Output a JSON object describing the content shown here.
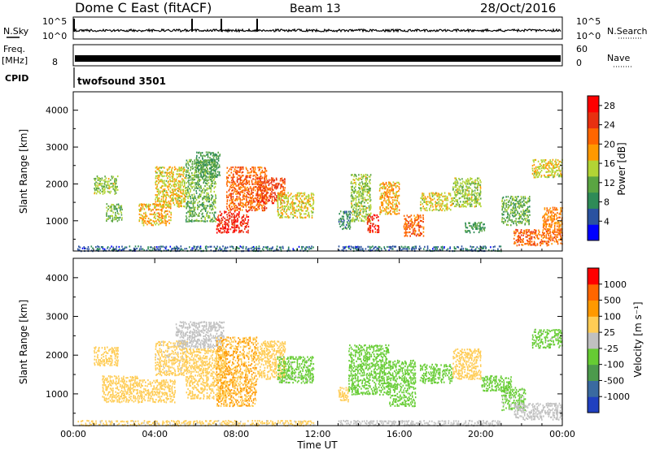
{
  "header": {
    "title": "Dome C East (fitACF)",
    "beam": "Beam 13",
    "date": "28/Oct/2016"
  },
  "status_panels": {
    "nsky_label": "N.Sky",
    "nsky_ticks": [
      "10^5",
      "10^0"
    ],
    "nsearch_label": "N.Search",
    "nsearch_ticks": [
      "10^5",
      "10^0"
    ],
    "freq_label": "Freq.",
    "freq_unit": "[MHz]",
    "freq_ticks": [
      "8"
    ],
    "nave_label": "Nave",
    "nave_ticks": [
      "60",
      "0"
    ],
    "cpid_label": "CPID",
    "cpid_text": "twofsound 3501"
  },
  "x_axis": {
    "ticks": [
      "00:00",
      "04:00",
      "08:00",
      "12:00",
      "16:00",
      "20:00",
      "00:00"
    ],
    "label": "Time UT"
  },
  "colors": {
    "power": [
      "#0000ff",
      "#2a52a0",
      "#2e8b57",
      "#5aa542",
      "#b2d435",
      "#ff9900",
      "#ff6600",
      "#e83010",
      "#ff0000"
    ],
    "velocity": [
      "#ff0000",
      "#ff6600",
      "#ff9900",
      "#ffcc55",
      "#c0c0c0",
      "#66cc33",
      "#4c9a4c",
      "#3a6aa0",
      "#2040c0"
    ]
  },
  "chart_data": [
    {
      "type": "heatmap",
      "panel": "power",
      "ylabel": "Slant Range [km]",
      "xlabel": "Time UT",
      "x_range_hours": [
        0,
        24
      ],
      "ylim": [
        180,
        4500
      ],
      "y_ticks": [
        1000,
        2000,
        3000,
        4000
      ],
      "colorbar": {
        "label": "Power [dB]",
        "ticks": [
          "4",
          "8",
          "12",
          "16",
          "20",
          "24",
          "28"
        ],
        "range": [
          0,
          30
        ]
      },
      "blobs": [
        {
          "t0": 1.0,
          "t1": 2.2,
          "r0": 1750,
          "r1": 2250,
          "v": 14
        },
        {
          "t0": 1.6,
          "t1": 2.4,
          "r0": 1000,
          "r1": 1500,
          "v": 12
        },
        {
          "t0": 3.2,
          "t1": 4.8,
          "r0": 900,
          "r1": 1500,
          "v": 18
        },
        {
          "t0": 4.0,
          "t1": 5.5,
          "r0": 1400,
          "r1": 2500,
          "v": 16
        },
        {
          "t0": 5.5,
          "t1": 7.0,
          "r0": 1000,
          "r1": 2700,
          "v": 12
        },
        {
          "t0": 6.0,
          "t1": 7.2,
          "r0": 2200,
          "r1": 2900,
          "v": 10
        },
        {
          "t0": 7.0,
          "t1": 8.6,
          "r0": 700,
          "r1": 1300,
          "v": 26
        },
        {
          "t0": 7.5,
          "t1": 9.5,
          "r0": 1300,
          "r1": 2500,
          "v": 22
        },
        {
          "t0": 9.0,
          "t1": 10.4,
          "r0": 1500,
          "r1": 2200,
          "v": 24
        },
        {
          "t0": 10.0,
          "t1": 11.8,
          "r0": 1100,
          "r1": 1800,
          "v": 16
        },
        {
          "t0": 13.0,
          "t1": 13.6,
          "r0": 800,
          "r1": 1300,
          "v": 8
        },
        {
          "t0": 13.6,
          "t1": 14.6,
          "r0": 1000,
          "r1": 2300,
          "v": 14
        },
        {
          "t0": 14.4,
          "t1": 15.0,
          "r0": 700,
          "r1": 1200,
          "v": 26
        },
        {
          "t0": 15.0,
          "t1": 16.0,
          "r0": 1200,
          "r1": 2100,
          "v": 18
        },
        {
          "t0": 16.2,
          "t1": 17.2,
          "r0": 600,
          "r1": 1200,
          "v": 22
        },
        {
          "t0": 17.0,
          "t1": 18.6,
          "r0": 1300,
          "r1": 1800,
          "v": 16
        },
        {
          "t0": 18.6,
          "t1": 20.0,
          "r0": 1400,
          "r1": 2200,
          "v": 14
        },
        {
          "t0": 19.2,
          "t1": 20.2,
          "r0": 700,
          "r1": 1000,
          "v": 10
        },
        {
          "t0": 21.0,
          "t1": 22.4,
          "r0": 900,
          "r1": 1700,
          "v": 12
        },
        {
          "t0": 21.6,
          "t1": 24.0,
          "r0": 350,
          "r1": 800,
          "v": 22
        },
        {
          "t0": 22.5,
          "t1": 24.0,
          "r0": 2200,
          "r1": 2700,
          "v": 16
        },
        {
          "t0": 23.0,
          "t1": 24.0,
          "r0": 700,
          "r1": 1400,
          "v": 20
        },
        {
          "t0": 0.2,
          "t1": 11.8,
          "r0": 200,
          "r1": 350,
          "v": 6
        },
        {
          "t0": 13.0,
          "t1": 21.0,
          "r0": 200,
          "r1": 350,
          "v": 6
        }
      ]
    },
    {
      "type": "heatmap",
      "panel": "velocity",
      "ylabel": "Slant Range [km]",
      "xlabel": "Time UT",
      "x_range_hours": [
        0,
        24
      ],
      "ylim": [
        180,
        4500
      ],
      "y_ticks": [
        1000,
        2000,
        3000,
        4000
      ],
      "colorbar": {
        "label": "Velocity [m s⁻¹]",
        "ticks": [
          "1000",
          "500",
          "100",
          "25",
          "-25",
          "-100",
          "-500",
          "-1000"
        ],
        "range": [
          -1200,
          1200
        ]
      },
      "blobs": [
        {
          "t0": 1.0,
          "t1": 2.2,
          "r0": 1750,
          "r1": 2250,
          "v": -300
        },
        {
          "t0": 1.4,
          "t1": 3.2,
          "r0": 800,
          "r1": 1500,
          "v": -300
        },
        {
          "t0": 3.2,
          "t1": 5.0,
          "r0": 800,
          "r1": 1400,
          "v": -300
        },
        {
          "t0": 4.0,
          "t1": 5.6,
          "r0": 1500,
          "r1": 2400,
          "v": -200
        },
        {
          "t0": 5.0,
          "t1": 7.4,
          "r0": 2200,
          "r1": 2900,
          "v": 0
        },
        {
          "t0": 5.5,
          "t1": 7.5,
          "r0": 900,
          "r1": 2200,
          "v": -250
        },
        {
          "t0": 7.0,
          "t1": 9.0,
          "r0": 700,
          "r1": 2500,
          "v": -400
        },
        {
          "t0": 9.0,
          "t1": 10.4,
          "r0": 1400,
          "r1": 2400,
          "v": -250
        },
        {
          "t0": 10.0,
          "t1": 11.8,
          "r0": 1300,
          "r1": 2000,
          "v": 200
        },
        {
          "t0": 13.0,
          "t1": 13.5,
          "r0": 800,
          "r1": 1200,
          "v": -300
        },
        {
          "t0": 13.5,
          "t1": 15.5,
          "r0": 1000,
          "r1": 2300,
          "v": 300
        },
        {
          "t0": 15.5,
          "t1": 16.8,
          "r0": 700,
          "r1": 1900,
          "v": 300
        },
        {
          "t0": 17.0,
          "t1": 18.6,
          "r0": 1300,
          "r1": 1800,
          "v": 300
        },
        {
          "t0": 18.6,
          "t1": 20.0,
          "r0": 1400,
          "r1": 2200,
          "v": -300
        },
        {
          "t0": 20.0,
          "t1": 21.5,
          "r0": 1100,
          "r1": 1500,
          "v": 300
        },
        {
          "t0": 21.0,
          "t1": 22.2,
          "r0": 600,
          "r1": 1200,
          "v": 200
        },
        {
          "t0": 21.6,
          "t1": 24.0,
          "r0": 350,
          "r1": 800,
          "v": 50
        },
        {
          "t0": 22.5,
          "t1": 24.0,
          "r0": 2200,
          "r1": 2700,
          "v": 200
        },
        {
          "t0": 0.2,
          "t1": 11.8,
          "r0": 200,
          "r1": 350,
          "v": -200
        },
        {
          "t0": 13.0,
          "t1": 21.0,
          "r0": 200,
          "r1": 350,
          "v": 50
        }
      ]
    }
  ]
}
